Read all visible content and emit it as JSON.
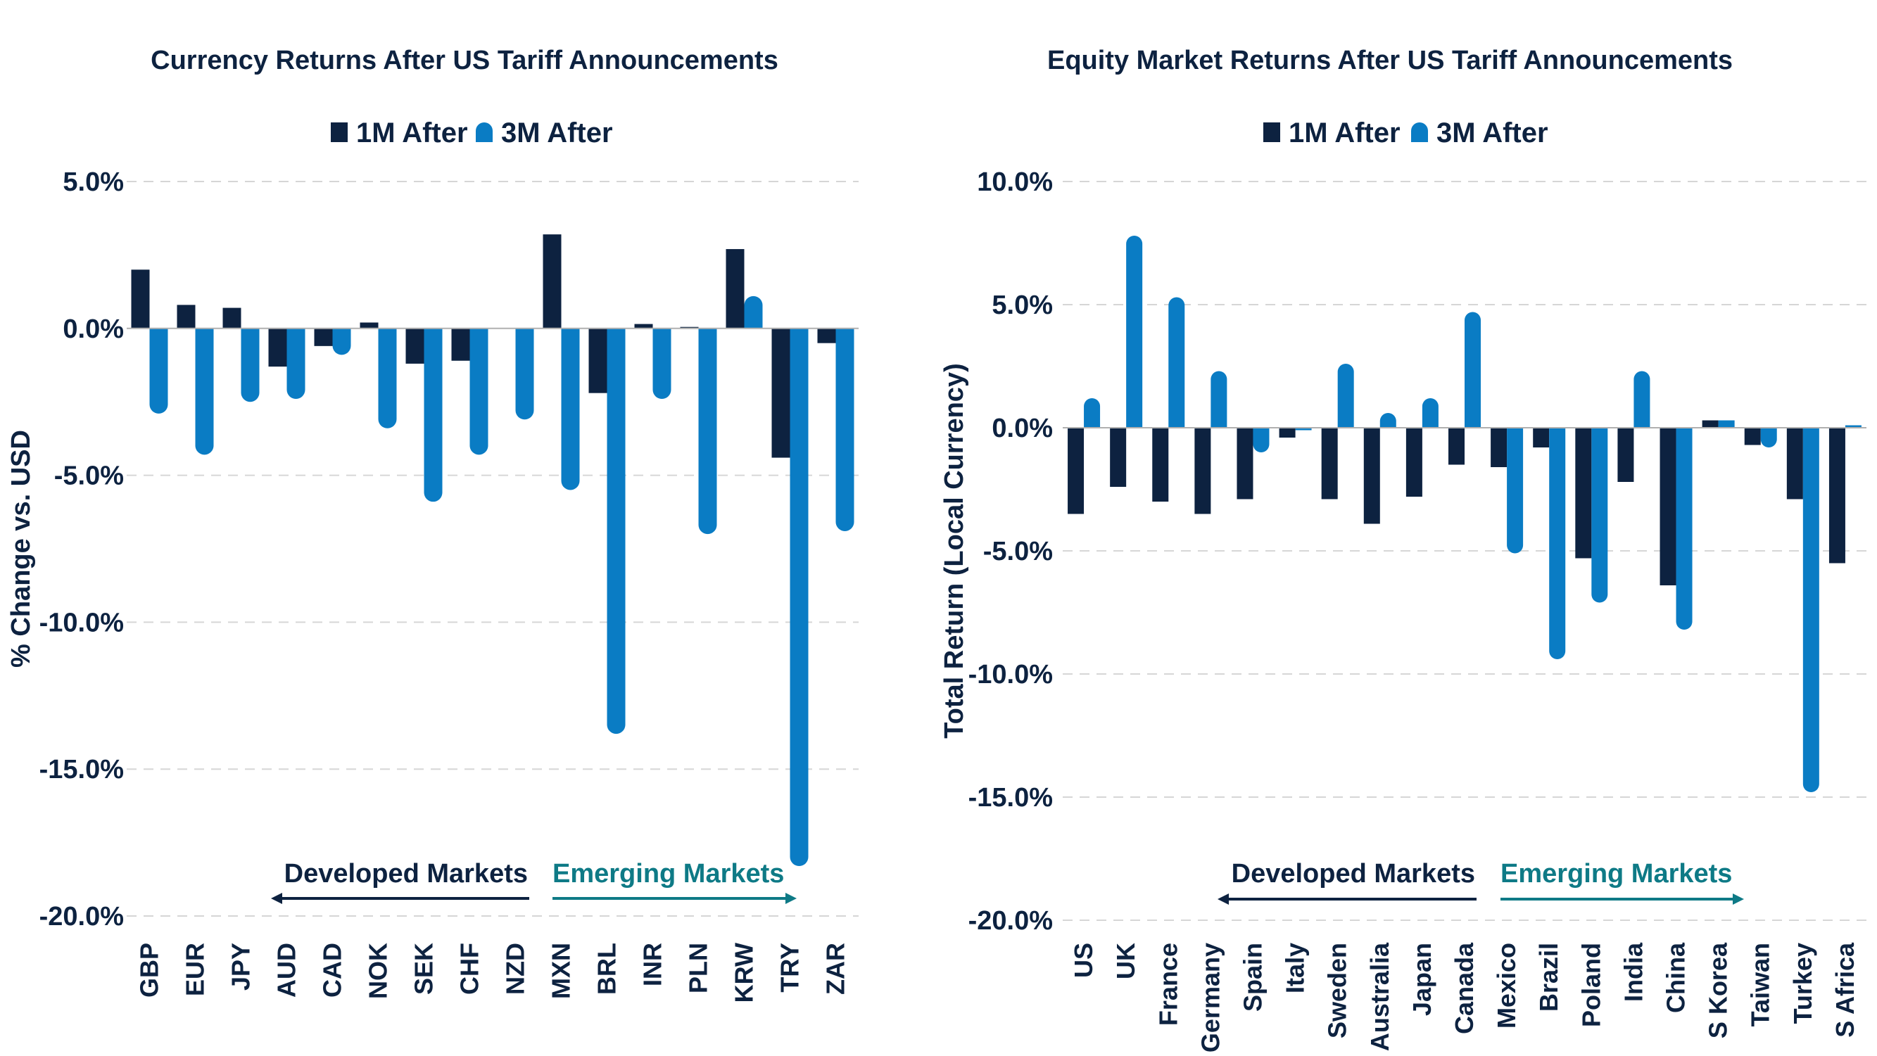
{
  "colors": {
    "series_1m": "#0d2240",
    "series_3m": "#0a7cc4",
    "developed": "#0d2240",
    "emerging": "#0e7a86",
    "grid": "#d6d6d6"
  },
  "chart_data": [
    {
      "type": "bar",
      "title": "Currency Returns After US Tariff Announcements",
      "ylabel": "% Change vs. USD",
      "xlabel": "",
      "ylim": [
        -20,
        5
      ],
      "yticks": [
        5,
        0,
        -5,
        -10,
        -15,
        -20
      ],
      "ytick_labels": [
        "5.0%",
        "0.0%",
        "-5.0%",
        "-10.0%",
        "-15.0%",
        "-20.0%"
      ],
      "grid": true,
      "legend_position": "top-center",
      "categories": [
        "GBP",
        "EUR",
        "JPY",
        "AUD",
        "CAD",
        "NOK",
        "SEK",
        "CHF",
        "NZD",
        "MXN",
        "BRL",
        "INR",
        "PLN",
        "KRW",
        "TRY",
        "ZAR"
      ],
      "series": [
        {
          "name": "1M After",
          "values": [
            2.0,
            0.8,
            0.7,
            -1.3,
            -0.6,
            0.2,
            -1.2,
            -1.1,
            0.0,
            3.2,
            -2.2,
            0.15,
            0.05,
            2.7,
            -4.4,
            -0.5
          ]
        },
        {
          "name": "3M After",
          "values": [
            -2.9,
            -4.3,
            -2.5,
            -2.4,
            -0.9,
            -3.4,
            -5.9,
            -4.3,
            -3.1,
            -5.5,
            -13.8,
            -2.4,
            -7.0,
            1.1,
            -18.3,
            -6.9
          ]
        }
      ],
      "annotations": {
        "developed": "Developed Markets",
        "emerging": "Emerging Markets"
      },
      "group_split_index": 9
    },
    {
      "type": "bar",
      "title": "Equity Market Returns After US Tariff Announcements",
      "ylabel": "Total Return (Local Currency)",
      "xlabel": "",
      "ylim": [
        -20,
        10
      ],
      "yticks": [
        10,
        5,
        0,
        -5,
        -10,
        -15,
        -20
      ],
      "ytick_labels": [
        "10.0%",
        "5.0%",
        "0.0%",
        "-5.0%",
        "-10.0%",
        "-15.0%",
        "-20.0%"
      ],
      "grid": true,
      "legend_position": "top-center",
      "categories": [
        "US",
        "UK",
        "France",
        "Germany",
        "Spain",
        "Italy",
        "Sweden",
        "Australia",
        "Japan",
        "Canada",
        "Mexico",
        "Brazil",
        "Poland",
        "India",
        "China",
        "S Korea",
        "Taiwan",
        "Turkey",
        "S Africa"
      ],
      "series": [
        {
          "name": "1M After",
          "values": [
            -3.5,
            -2.4,
            -3.0,
            -3.5,
            -2.9,
            -0.4,
            -2.9,
            -3.9,
            -2.8,
            -1.5,
            -1.6,
            -0.8,
            -5.3,
            -2.2,
            -6.4,
            0.3,
            -0.7,
            -2.9,
            -5.5
          ]
        },
        {
          "name": "3M After",
          "values": [
            1.2,
            7.8,
            5.3,
            2.3,
            -1.0,
            -0.1,
            2.6,
            0.6,
            1.2,
            4.7,
            -5.1,
            -9.4,
            -7.1,
            2.3,
            -8.2,
            0.3,
            -0.8,
            -14.8,
            0.1
          ]
        }
      ],
      "annotations": {
        "developed": "Developed Markets",
        "emerging": "Emerging Markets"
      },
      "group_split_index": 10
    }
  ]
}
